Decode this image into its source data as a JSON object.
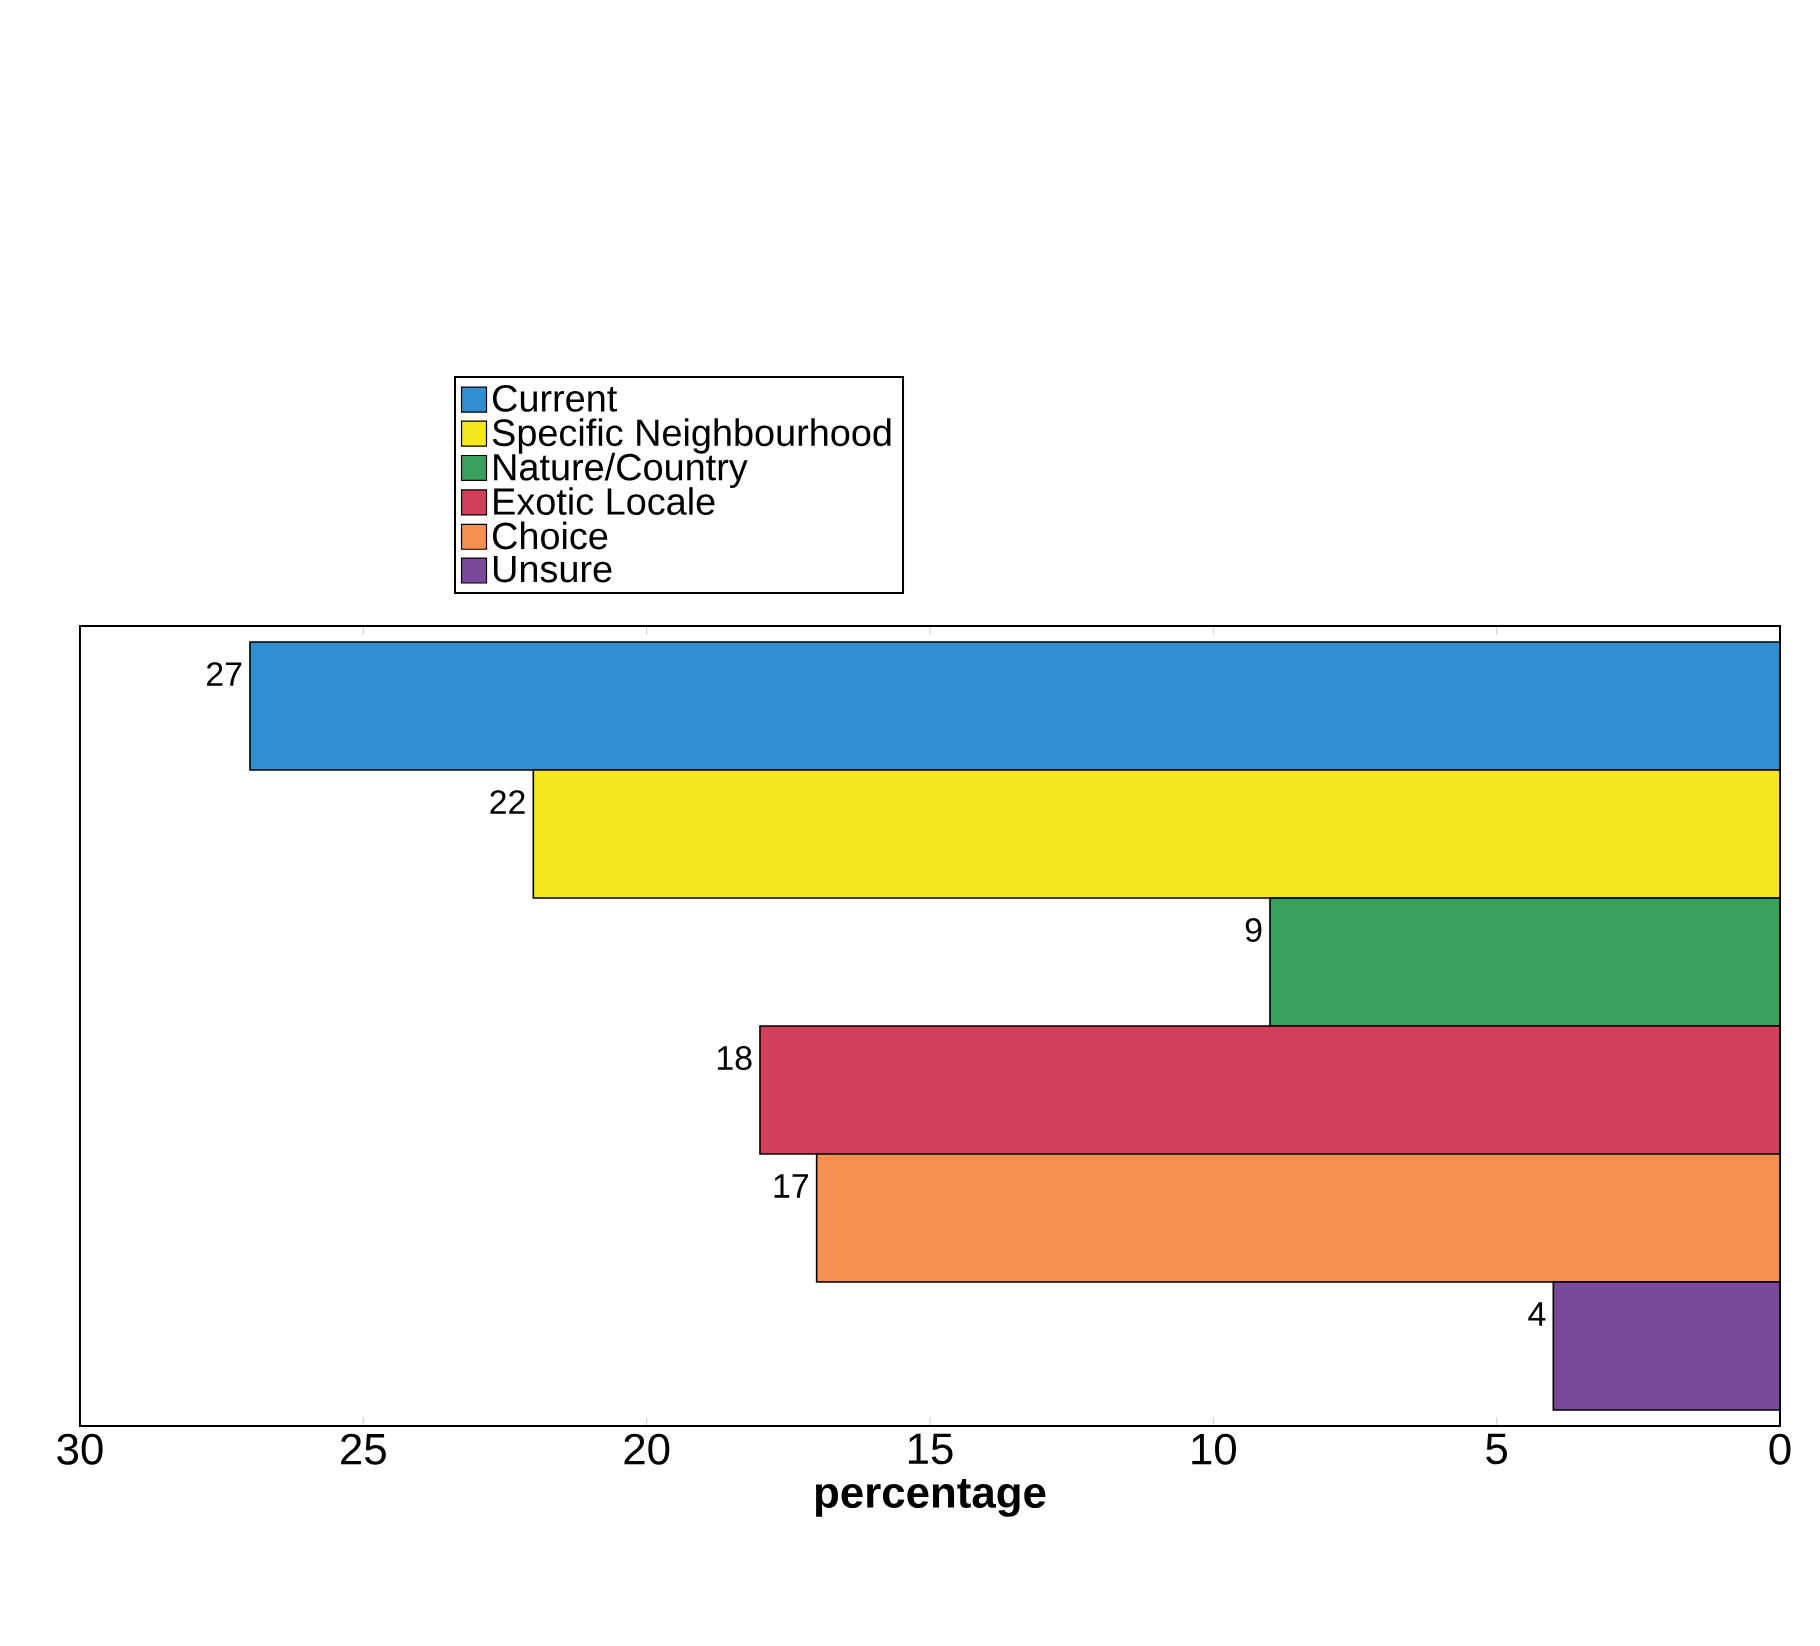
{
  "chart_data": {
    "type": "bar",
    "orientation": "horizontal",
    "xlabel": "**percentage**",
    "categories": [
      null
    ],
    "series": [
      {
        "name": "Current",
        "color": "#2f8fd0",
        "values": [
          27
        ]
      },
      {
        "name": "Specific Neighbourhood",
        "color": "#f5e61e",
        "values": [
          22
        ]
      },
      {
        "name": "Nature/Country",
        "color": "#3aa060",
        "values": [
          9
        ]
      },
      {
        "name": "Exotic Locale",
        "color": "#d0405a",
        "values": [
          18
        ]
      },
      {
        "name": "Choice",
        "color": "#f59050",
        "values": [
          17
        ]
      },
      {
        "name": "Unsure",
        "color": "#7a4a9a",
        "values": [
          4
        ]
      }
    ],
    "xlim": [
      30,
      0
    ],
    "xticks": [
      0,
      5,
      10,
      15,
      20,
      25,
      30
    ],
    "data_labels": true,
    "legend": "top left"
  }
}
